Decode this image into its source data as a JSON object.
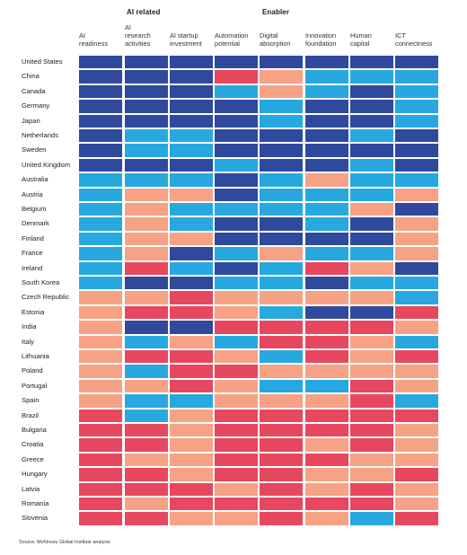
{
  "chart_data": {
    "type": "heatmap",
    "group_headers": [
      "AI related",
      "Enabler"
    ],
    "columns": [
      "AI readiness",
      "AI research activities",
      "AI startup investment",
      "Automation potential",
      "Digital absorption",
      "Innovation foundation",
      "Human capital",
      "ICT connectness"
    ],
    "column_lines": [
      [
        "AI",
        "readiness"
      ],
      [
        "AI",
        "research",
        "activities"
      ],
      [
        "AI startup",
        "investment"
      ],
      [
        "Automation",
        "potential"
      ],
      [
        "Digital",
        "absorption"
      ],
      [
        "Innovation",
        "foundation"
      ],
      [
        "Human",
        "capital"
      ],
      [
        "ICT",
        "connectness"
      ]
    ],
    "legend_colors": {
      "1": "#2f4a9c",
      "2": "#27a9e0",
      "3": "#f7a285",
      "4": "#e7475f"
    },
    "rows": [
      {
        "country": "United States",
        "values": [
          1,
          1,
          1,
          1,
          1,
          1,
          1,
          1
        ]
      },
      {
        "country": "China",
        "values": [
          1,
          1,
          1,
          4,
          3,
          2,
          2,
          2
        ]
      },
      {
        "country": "Canada",
        "values": [
          1,
          1,
          1,
          2,
          3,
          2,
          1,
          2
        ]
      },
      {
        "country": "Germany",
        "values": [
          1,
          1,
          1,
          1,
          2,
          1,
          1,
          2
        ]
      },
      {
        "country": "Japan",
        "values": [
          1,
          1,
          1,
          1,
          2,
          1,
          1,
          2
        ]
      },
      {
        "country": "Netherlands",
        "values": [
          1,
          2,
          2,
          1,
          1,
          1,
          2,
          1
        ]
      },
      {
        "country": "Sweden",
        "values": [
          1,
          2,
          2,
          1,
          1,
          1,
          1,
          1
        ]
      },
      {
        "country": "United Kingdom",
        "values": [
          1,
          1,
          1,
          2,
          1,
          1,
          2,
          1
        ]
      },
      {
        "country": "Australia",
        "values": [
          2,
          2,
          2,
          1,
          2,
          3,
          2,
          2
        ]
      },
      {
        "country": "Austria",
        "values": [
          2,
          3,
          3,
          1,
          2,
          2,
          2,
          3
        ]
      },
      {
        "country": "Belgium",
        "values": [
          2,
          3,
          2,
          2,
          2,
          2,
          3,
          1
        ]
      },
      {
        "country": "Denmark",
        "values": [
          2,
          3,
          2,
          1,
          1,
          2,
          1,
          3
        ]
      },
      {
        "country": "Finland",
        "values": [
          2,
          3,
          3,
          1,
          1,
          1,
          1,
          3
        ]
      },
      {
        "country": "France",
        "values": [
          2,
          3,
          1,
          2,
          3,
          2,
          2,
          3
        ]
      },
      {
        "country": "Ireland",
        "values": [
          2,
          4,
          2,
          1,
          2,
          4,
          3,
          1
        ]
      },
      {
        "country": "South Korea",
        "values": [
          2,
          1,
          1,
          2,
          2,
          1,
          2,
          2
        ]
      },
      {
        "country": "Czech Republic",
        "values": [
          3,
          3,
          4,
          3,
          3,
          3,
          3,
          2
        ]
      },
      {
        "country": "Estonia",
        "values": [
          3,
          4,
          4,
          3,
          2,
          1,
          1,
          4
        ]
      },
      {
        "country": "India",
        "values": [
          3,
          1,
          1,
          4,
          4,
          4,
          4,
          3
        ]
      },
      {
        "country": "Italy",
        "values": [
          3,
          2,
          3,
          2,
          4,
          4,
          3,
          2
        ]
      },
      {
        "country": "Lithuania",
        "values": [
          3,
          4,
          4,
          3,
          2,
          4,
          3,
          4
        ]
      },
      {
        "country": "Poland",
        "values": [
          3,
          2,
          4,
          4,
          3,
          3,
          3,
          3
        ]
      },
      {
        "country": "Portugal",
        "values": [
          3,
          3,
          4,
          3,
          2,
          2,
          4,
          3
        ]
      },
      {
        "country": "Spain",
        "values": [
          3,
          2,
          2,
          3,
          3,
          3,
          4,
          2
        ]
      },
      {
        "country": "Brazil",
        "values": [
          4,
          2,
          3,
          4,
          4,
          4,
          4,
          4
        ]
      },
      {
        "country": "Bulgaria",
        "values": [
          4,
          4,
          3,
          4,
          4,
          4,
          4,
          3
        ]
      },
      {
        "country": "Croatia",
        "values": [
          4,
          4,
          3,
          4,
          4,
          3,
          4,
          3
        ]
      },
      {
        "country": "Greece",
        "values": [
          4,
          3,
          3,
          4,
          4,
          4,
          3,
          3
        ]
      },
      {
        "country": "Hungary",
        "values": [
          4,
          4,
          3,
          4,
          4,
          3,
          3,
          4
        ]
      },
      {
        "country": "Latvia",
        "values": [
          4,
          4,
          4,
          3,
          4,
          3,
          4,
          3
        ]
      },
      {
        "country": "Romania",
        "values": [
          4,
          3,
          4,
          4,
          4,
          4,
          4,
          3
        ]
      },
      {
        "country": "Slovenia",
        "values": [
          4,
          4,
          3,
          3,
          4,
          3,
          2,
          4
        ]
      }
    ]
  },
  "source": "Source: McKinsey Global Institute analysis"
}
